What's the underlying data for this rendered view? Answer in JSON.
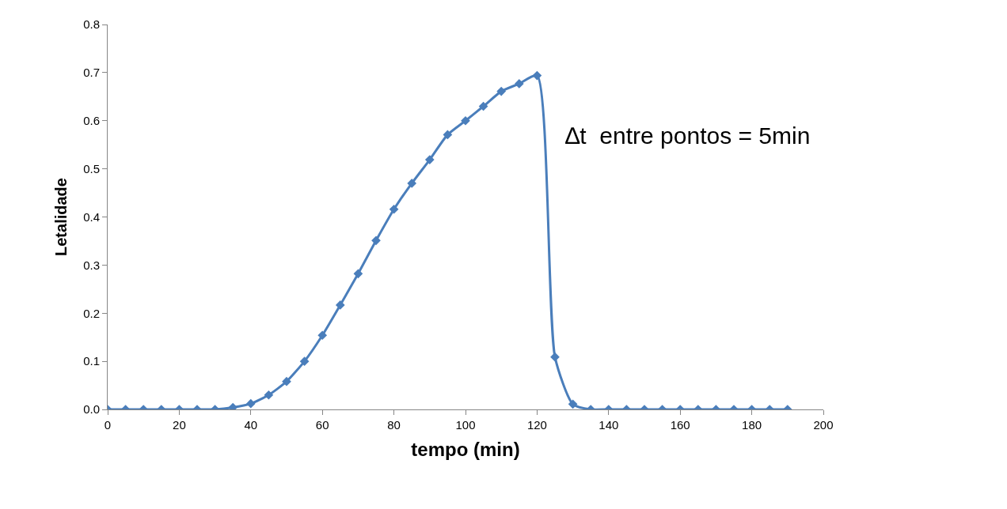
{
  "chart_data": {
    "type": "line",
    "xlabel": "tempo (min)",
    "ylabel": "Letalidade",
    "annotations": [
      "∆t  entre pontos = 5min"
    ],
    "x": [
      0,
      5,
      10,
      15,
      20,
      25,
      30,
      35,
      40,
      45,
      50,
      55,
      60,
      65,
      70,
      75,
      80,
      85,
      90,
      95,
      100,
      105,
      110,
      115,
      120,
      125,
      130,
      135,
      140,
      145,
      150,
      155,
      160,
      165,
      170,
      175,
      180,
      185,
      190
    ],
    "series": [
      {
        "color": "#4a7ebb",
        "values": [
          0,
          0,
          0,
          0,
          0,
          0,
          0,
          0.004,
          0.012,
          0.03,
          0.058,
          0.1,
          0.154,
          0.217,
          0.282,
          0.351,
          0.416,
          0.47,
          0.519,
          0.571,
          0.6,
          0.63,
          0.661,
          0.677,
          0.694,
          0.109,
          0.011,
          0,
          0,
          0,
          0,
          0,
          0,
          0,
          0,
          0,
          0,
          0,
          0
        ]
      }
    ],
    "xlim": [
      0,
      200
    ],
    "xticks": [
      0,
      20,
      40,
      60,
      80,
      100,
      120,
      140,
      160,
      180,
      200
    ],
    "ylim": [
      0,
      0.8
    ],
    "yticks": [
      {
        "value": 0,
        "label": "0.0"
      },
      {
        "value": 0.1,
        "label": "0.1"
      },
      {
        "value": 0.2,
        "label": "0.2"
      },
      {
        "value": 0.3,
        "label": "0.3"
      },
      {
        "value": 0.4,
        "label": "0.4"
      },
      {
        "value": 0.5,
        "label": "0.5"
      },
      {
        "value": 0.6,
        "label": "0.6"
      },
      {
        "value": 0.7,
        "label": "0.7"
      },
      {
        "value": 0.8,
        "label": "0.8"
      }
    ],
    "marker": "diamond",
    "line_style": "solid"
  }
}
